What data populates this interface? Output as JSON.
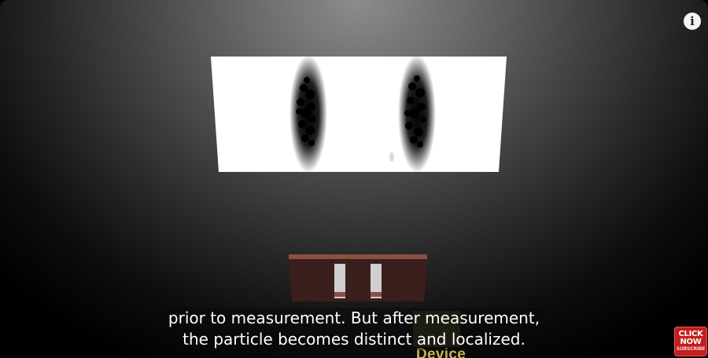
{
  "video": {
    "captions": [
      "prior to measurement. But after measurement,",
      "the particle becomes distinct and localized."
    ],
    "scene_label": "Device",
    "info_icon": "info-icon",
    "subscribe_badge": {
      "line1": "CLICK",
      "line2": "NOW",
      "line3": "SUBSCRIBE"
    }
  },
  "colors": {
    "screen": "#ffffff",
    "slit_plate": "#3a1f1c",
    "slit_plate_edge": "#8a4f45",
    "caption_text": "#ffffff",
    "label": "#c9b24e",
    "badge": "#c41e1e"
  }
}
